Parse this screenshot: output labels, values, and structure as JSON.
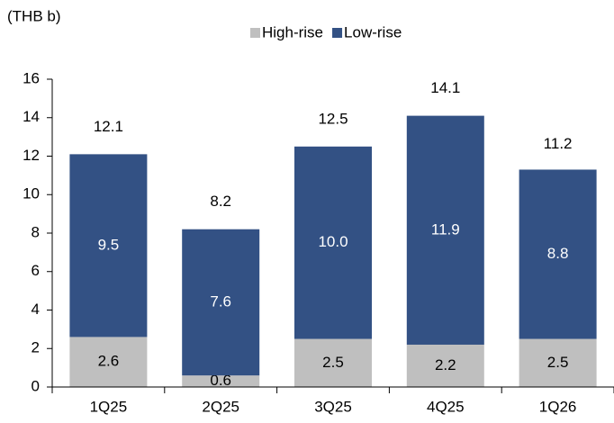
{
  "chart_data": {
    "type": "stacked_bar",
    "unit_label": "(THB b)",
    "categories": [
      "1Q25",
      "2Q25",
      "3Q25",
      "4Q25",
      "1Q26"
    ],
    "series": [
      {
        "name": "High-rise",
        "color": "#bfbfbf",
        "values": [
          2.6,
          0.6,
          2.5,
          2.2,
          2.5
        ]
      },
      {
        "name": "Low-rise",
        "color": "#335184",
        "values": [
          9.5,
          7.6,
          10.0,
          11.9,
          8.8
        ],
        "value_labels": [
          "9.5",
          "7.6",
          "10.0",
          "11.9",
          "8.8"
        ]
      }
    ],
    "totals": [
      12.1,
      8.2,
      12.5,
      14.1,
      11.2
    ],
    "ylim": [
      0,
      16
    ],
    "yticks": [
      0,
      2,
      4,
      6,
      8,
      10,
      12,
      14,
      16
    ],
    "legend": "top"
  }
}
